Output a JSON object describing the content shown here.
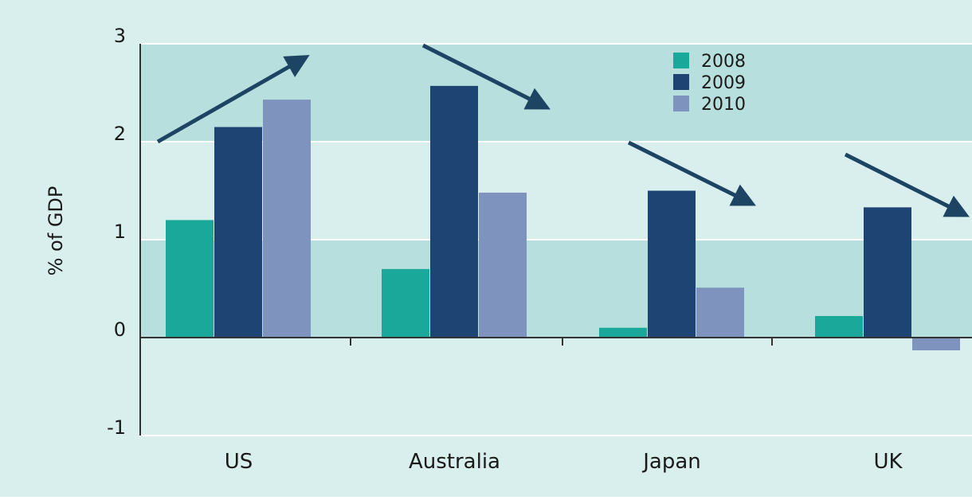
{
  "colors": {
    "page_background": "#d9efed",
    "band_fill": "#b7dfdd",
    "gridline": "#ffffff",
    "axis": "#333333",
    "text": "#1a1a1a",
    "arrow": "#1e4464"
  },
  "chart_data": {
    "type": "bar",
    "title": "",
    "xlabel": "",
    "ylabel": "% of GDP",
    "ylim": [
      -1,
      3
    ],
    "yticks": [
      -1,
      0,
      1,
      2,
      3
    ],
    "grid": true,
    "shaded_bands": [
      [
        2,
        3
      ],
      [
        0,
        1
      ]
    ],
    "legend_position": "top-center",
    "categories": [
      "US",
      "Australia",
      "Japan",
      "UK"
    ],
    "series": [
      {
        "name": "2008",
        "color": "#1aa89a",
        "values": [
          1.2,
          0.7,
          0.1,
          0.22
        ]
      },
      {
        "name": "2009",
        "color": "#1e4474",
        "values": [
          2.15,
          2.57,
          1.5,
          1.33
        ]
      },
      {
        "name": "2010",
        "color": "#7f93bf",
        "values": [
          2.43,
          1.48,
          0.51,
          -0.13
        ]
      }
    ],
    "annotations": [
      {
        "type": "arrow",
        "category": "US",
        "direction": "up"
      },
      {
        "type": "arrow",
        "category": "Australia",
        "direction": "down"
      },
      {
        "type": "arrow",
        "category": "Japan",
        "direction": "down"
      },
      {
        "type": "arrow",
        "category": "UK",
        "direction": "down"
      }
    ]
  }
}
